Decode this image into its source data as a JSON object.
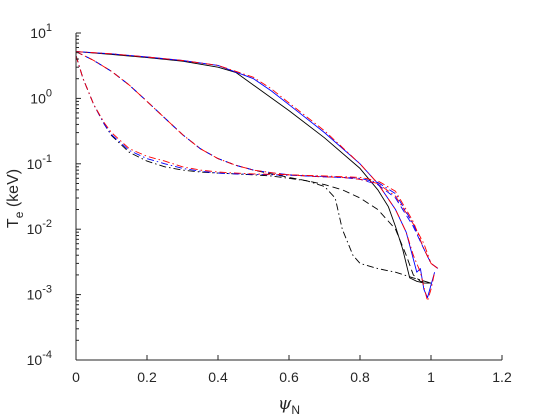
{
  "chart_data": {
    "type": "line",
    "xlabel": {
      "symbol": "ψ",
      "sub": "N"
    },
    "ylabel": {
      "main": "T",
      "sub": "e",
      "unit": " (keV)"
    },
    "xlim": [
      0,
      1.2
    ],
    "ylim": [
      0.0001,
      10
    ],
    "yscale": "log",
    "grid": false,
    "legend": "none",
    "x_ticks": [
      {
        "value": 0,
        "label": "0"
      },
      {
        "value": 0.2,
        "label": "0.2"
      },
      {
        "value": 0.4,
        "label": "0.4"
      },
      {
        "value": 0.6,
        "label": "0.6"
      },
      {
        "value": 0.8,
        "label": "0.8"
      },
      {
        "value": 1.0,
        "label": "1"
      },
      {
        "value": 1.2,
        "label": "1.2"
      }
    ],
    "y_ticks": [
      {
        "value": 0.0001,
        "base": "10",
        "exp": "-4"
      },
      {
        "value": 0.001,
        "base": "10",
        "exp": "-3"
      },
      {
        "value": 0.01,
        "base": "10",
        "exp": "-2"
      },
      {
        "value": 0.1,
        "base": "10",
        "exp": "-1"
      },
      {
        "value": 1,
        "base": "10",
        "exp": "0"
      },
      {
        "value": 10,
        "base": "10",
        "exp": "1"
      }
    ],
    "series": [
      {
        "color": "#000000",
        "dash": "solid",
        "x": [
          0,
          0.1,
          0.2,
          0.3,
          0.4,
          0.45,
          0.5,
          0.6,
          0.7,
          0.8,
          0.85,
          0.88,
          0.9,
          0.92,
          0.94,
          0.96,
          0.98,
          1.0
        ],
        "y": [
          5.2,
          4.7,
          4.2,
          3.7,
          3.0,
          2.5,
          1.6,
          0.65,
          0.25,
          0.085,
          0.04,
          0.022,
          0.011,
          0.005,
          0.0018,
          0.0016,
          0.0015,
          0.0015
        ]
      },
      {
        "color": "#0000ff",
        "dash": "solid",
        "x": [
          0,
          0.1,
          0.2,
          0.3,
          0.4,
          0.5,
          0.55,
          0.6,
          0.7,
          0.8,
          0.85,
          0.9,
          0.93,
          0.95,
          0.96,
          0.97,
          0.98,
          0.99,
          1.0,
          1.01
        ],
        "y": [
          5.2,
          4.8,
          4.3,
          3.8,
          3.2,
          2.0,
          1.3,
          0.8,
          0.3,
          0.1,
          0.05,
          0.02,
          0.009,
          0.0035,
          0.0022,
          0.0025,
          0.0012,
          0.0009,
          0.0014,
          0.0022
        ]
      },
      {
        "color": "#ff0000",
        "dash": "dashdot",
        "x": [
          0,
          0.1,
          0.2,
          0.3,
          0.4,
          0.5,
          0.55,
          0.6,
          0.7,
          0.8,
          0.85,
          0.9,
          0.93,
          0.95,
          0.97,
          0.98,
          0.99,
          1.0,
          1.01
        ],
        "y": [
          5.2,
          4.8,
          4.3,
          3.8,
          3.2,
          2.1,
          1.4,
          0.85,
          0.32,
          0.1,
          0.05,
          0.02,
          0.009,
          0.004,
          0.0022,
          0.0013,
          0.0008,
          0.0012,
          0.0022
        ]
      },
      {
        "color": "#000000",
        "dash": "dashed",
        "x": [
          0,
          0.05,
          0.1,
          0.15,
          0.2,
          0.25,
          0.3,
          0.35,
          0.4,
          0.45,
          0.5,
          0.55,
          0.6,
          0.65,
          0.7,
          0.75,
          0.8,
          0.85,
          0.9,
          0.93,
          0.95,
          0.97,
          0.99,
          1.0
        ],
        "y": [
          5.2,
          3.8,
          2.6,
          1.6,
          0.9,
          0.5,
          0.28,
          0.17,
          0.12,
          0.095,
          0.08,
          0.07,
          0.062,
          0.055,
          0.048,
          0.04,
          0.03,
          0.02,
          0.01,
          0.004,
          0.002,
          0.0016,
          0.0015,
          0.0015
        ]
      },
      {
        "color": "#0000ff",
        "dash": "dashed",
        "x": [
          0,
          0.05,
          0.1,
          0.15,
          0.2,
          0.25,
          0.3,
          0.35,
          0.4,
          0.45,
          0.5,
          0.55,
          0.6,
          0.65,
          0.7,
          0.75,
          0.8,
          0.85,
          0.9,
          0.95,
          0.98,
          1.0,
          1.02
        ],
        "y": [
          5.2,
          3.8,
          2.6,
          1.6,
          0.9,
          0.5,
          0.28,
          0.17,
          0.12,
          0.095,
          0.08,
          0.073,
          0.068,
          0.065,
          0.063,
          0.062,
          0.058,
          0.048,
          0.03,
          0.011,
          0.005,
          0.003,
          0.0025
        ]
      },
      {
        "color": "#ff0000",
        "dash": "dashdot",
        "x": [
          0,
          0.05,
          0.1,
          0.15,
          0.2,
          0.25,
          0.3,
          0.35,
          0.4,
          0.45,
          0.5,
          0.55,
          0.6,
          0.65,
          0.7,
          0.75,
          0.8,
          0.85,
          0.9,
          0.95,
          0.98,
          1.0,
          1.02
        ],
        "y": [
          5.2,
          3.8,
          2.6,
          1.6,
          0.9,
          0.5,
          0.28,
          0.17,
          0.12,
          0.095,
          0.08,
          0.073,
          0.068,
          0.065,
          0.063,
          0.062,
          0.058,
          0.05,
          0.032,
          0.012,
          0.006,
          0.003,
          0.0025
        ]
      },
      {
        "color": "#000000",
        "dash": "dashdot",
        "x": [
          0,
          0.02,
          0.05,
          0.08,
          0.1,
          0.15,
          0.2,
          0.25,
          0.3,
          0.35,
          0.4,
          0.45,
          0.5,
          0.55,
          0.6,
          0.65,
          0.7,
          0.73,
          0.75,
          0.78,
          0.8,
          0.85,
          0.9,
          0.95,
          1.0
        ],
        "y": [
          4.5,
          2.0,
          0.8,
          0.4,
          0.27,
          0.15,
          0.11,
          0.09,
          0.08,
          0.075,
          0.072,
          0.07,
          0.068,
          0.065,
          0.06,
          0.055,
          0.045,
          0.03,
          0.01,
          0.004,
          0.003,
          0.0025,
          0.0022,
          0.0018,
          0.0015
        ]
      },
      {
        "color": "#0000ff",
        "dash": "dashdot",
        "x": [
          0,
          0.02,
          0.05,
          0.08,
          0.1,
          0.15,
          0.2,
          0.25,
          0.3,
          0.35,
          0.4,
          0.45,
          0.5,
          0.55,
          0.6,
          0.7,
          0.8,
          0.85,
          0.9,
          0.95,
          0.98,
          1.0,
          1.02
        ],
        "y": [
          4.5,
          2.0,
          0.8,
          0.4,
          0.28,
          0.16,
          0.12,
          0.1,
          0.085,
          0.077,
          0.072,
          0.07,
          0.069,
          0.068,
          0.067,
          0.064,
          0.06,
          0.052,
          0.035,
          0.012,
          0.005,
          0.003,
          0.0025
        ]
      },
      {
        "color": "#ff0000",
        "dash": "dashdot",
        "x": [
          0,
          0.02,
          0.05,
          0.08,
          0.1,
          0.15,
          0.2,
          0.25,
          0.3,
          0.35,
          0.4,
          0.45,
          0.5,
          0.55,
          0.6,
          0.7,
          0.8,
          0.85,
          0.9,
          0.95,
          0.98,
          1.0,
          1.02
        ],
        "y": [
          4.5,
          2.0,
          0.8,
          0.42,
          0.3,
          0.17,
          0.13,
          0.11,
          0.09,
          0.08,
          0.075,
          0.072,
          0.07,
          0.069,
          0.068,
          0.065,
          0.062,
          0.055,
          0.038,
          0.013,
          0.005,
          0.003,
          0.0025
        ]
      }
    ]
  }
}
